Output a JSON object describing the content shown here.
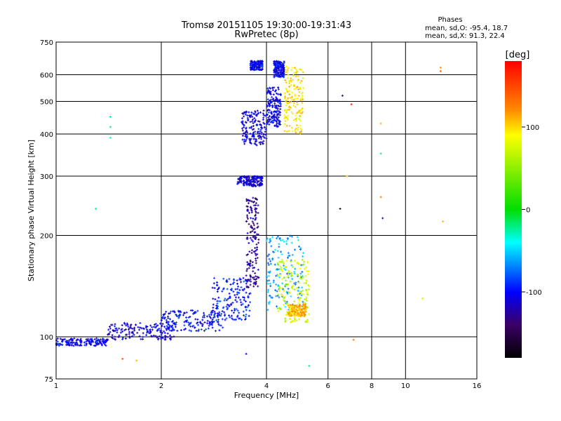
{
  "chart_data": {
    "type": "scatter",
    "title": "Tromsø 20151105 19:30:00-19:31:43",
    "subtitle": "RwPretec (8p)",
    "xlabel": "Frequency [MHz]",
    "ylabel": "Stationary phase Virtual Height [km]",
    "x_scale": "log",
    "y_scale": "log",
    "xlim": [
      1,
      16
    ],
    "ylim": [
      75,
      750
    ],
    "x_ticks": [
      1,
      2,
      4,
      6,
      8,
      10,
      16
    ],
    "y_ticks": [
      75,
      100,
      200,
      300,
      400,
      500,
      600,
      750
    ],
    "grid": true,
    "phase_stats": {
      "heading": "Phases",
      "line_o": "mean, sd,O: -95.4, 18.7",
      "line_x": "mean, sd,X:  91.3, 22.4"
    },
    "colorbar": {
      "label": "[deg]",
      "range": [
        -180,
        180
      ],
      "ticks": [
        100,
        0,
        -100
      ],
      "colors": [
        "#ff0000",
        "#ffff00",
        "#00dd00",
        "#00ffff",
        "#0000ff",
        "#3b0066",
        "#000000"
      ]
    },
    "clusters": [
      {
        "x": [
          1.0,
          1.4
        ],
        "y": [
          94,
          99
        ],
        "phase": -105
      },
      {
        "x": [
          1.4,
          2.2
        ],
        "y": [
          98,
          110
        ],
        "phase": -110
      },
      {
        "x": [
          2.0,
          3.0
        ],
        "y": [
          104,
          120
        ],
        "phase": -100
      },
      {
        "x": [
          2.8,
          3.6
        ],
        "y": [
          112,
          150
        ],
        "phase": -95
      },
      {
        "x": [
          3.5,
          3.8
        ],
        "y": [
          140,
          260
        ],
        "phase": -130
      },
      {
        "x": [
          3.3,
          3.9
        ],
        "y": [
          280,
          300
        ],
        "phase": -110
      },
      {
        "x": [
          3.4,
          4.0
        ],
        "y": [
          370,
          470
        ],
        "phase": -110
      },
      {
        "x": [
          4.0,
          4.4
        ],
        "y": [
          420,
          550
        ],
        "phase": -105
      },
      {
        "x": [
          3.6,
          3.9
        ],
        "y": [
          620,
          660
        ],
        "phase": -100
      },
      {
        "x": [
          4.2,
          4.5
        ],
        "y": [
          590,
          660
        ],
        "phase": -105
      },
      {
        "x": [
          4.5,
          5.1
        ],
        "y": [
          400,
          640
        ],
        "phase": 95
      },
      {
        "x": [
          4.0,
          5.1
        ],
        "y": [
          120,
          200
        ],
        "phase": -60
      },
      {
        "x": [
          4.3,
          5.3
        ],
        "y": [
          110,
          170
        ],
        "phase": 70
      },
      {
        "x": [
          4.6,
          5.2
        ],
        "y": [
          115,
          125
        ],
        "phase": 110
      }
    ],
    "outliers": [
      {
        "x": 1.43,
        "y": 450,
        "phase": -20
      },
      {
        "x": 1.43,
        "y": 420,
        "phase": -20
      },
      {
        "x": 1.43,
        "y": 390,
        "phase": -30
      },
      {
        "x": 1.3,
        "y": 240,
        "phase": -20
      },
      {
        "x": 6.6,
        "y": 520,
        "phase": -150
      },
      {
        "x": 7.0,
        "y": 490,
        "phase": 170
      },
      {
        "x": 8.5,
        "y": 430,
        "phase": 110
      },
      {
        "x": 8.5,
        "y": 350,
        "phase": -20
      },
      {
        "x": 8.6,
        "y": 225,
        "phase": -110
      },
      {
        "x": 8.5,
        "y": 260,
        "phase": 130
      },
      {
        "x": 12.6,
        "y": 630,
        "phase": 120
      },
      {
        "x": 12.6,
        "y": 615,
        "phase": 140
      },
      {
        "x": 12.8,
        "y": 220,
        "phase": 110
      },
      {
        "x": 11.2,
        "y": 130,
        "phase": 70
      },
      {
        "x": 6.8,
        "y": 300,
        "phase": 110
      },
      {
        "x": 7.1,
        "y": 98,
        "phase": 130
      },
      {
        "x": 5.3,
        "y": 82,
        "phase": -20
      },
      {
        "x": 3.5,
        "y": 89,
        "phase": -100
      },
      {
        "x": 1.7,
        "y": 85,
        "phase": 110
      },
      {
        "x": 1.55,
        "y": 86,
        "phase": 150
      },
      {
        "x": 6.5,
        "y": 240,
        "phase": -170
      }
    ]
  }
}
